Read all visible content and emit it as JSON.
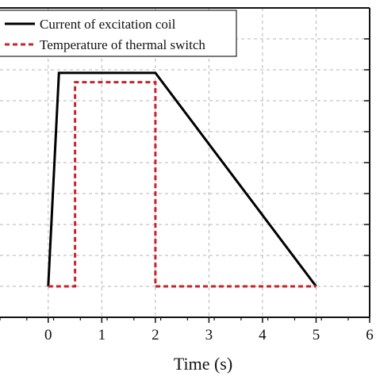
{
  "chart_data": {
    "type": "line",
    "xlabel": "Time (s)",
    "ylabel": "",
    "xlim": [
      -0.9,
      6
    ],
    "ylim": [
      0,
      1
    ],
    "x_ticks": [
      0,
      1,
      2,
      3,
      4,
      5,
      6
    ],
    "x_tick_labels": [
      "0",
      "1",
      "2",
      "3",
      "4",
      "5",
      "6"
    ],
    "y_gridlines": [
      0.1,
      0.2,
      0.3,
      0.4,
      0.5,
      0.6,
      0.7,
      0.8,
      0.9
    ],
    "grid": true,
    "legend_position": "top-left",
    "series": [
      {
        "name": "Current of excitation coil",
        "color": "#000000",
        "dash": "solid",
        "x": [
          0,
          0.2,
          2,
          5
        ],
        "y": [
          0.1,
          0.79,
          0.79,
          0.1
        ]
      },
      {
        "name": "Temperature of thermal switch",
        "color": "#c8232b",
        "dash": "dashed",
        "x": [
          0,
          0.5,
          0.5,
          2,
          2,
          5
        ],
        "y": [
          0.1,
          0.1,
          0.76,
          0.76,
          0.1,
          0.1
        ]
      }
    ]
  }
}
